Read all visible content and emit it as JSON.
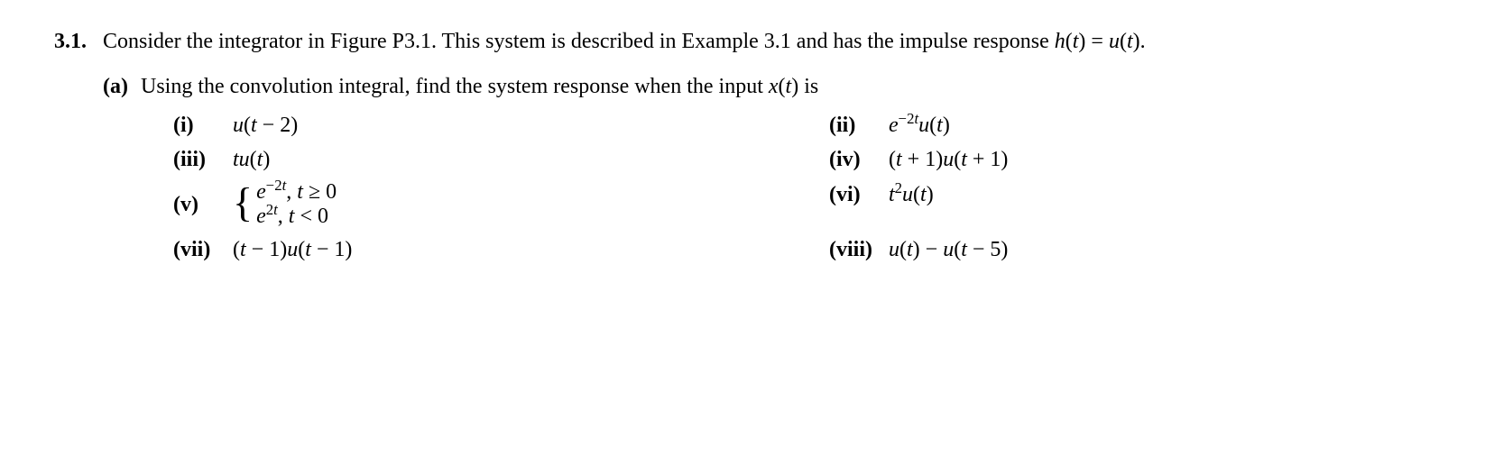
{
  "problem": {
    "number": "3.1.",
    "stem_a": "Consider the integrator in Figure P3.1. This system is described in Example 3.1 and has the impulse response ",
    "stem_math": "h(t) = u(t)",
    "stem_dot": ".",
    "part_a": {
      "label": "(a)",
      "text_a": "Using the convolution integral, find the system response when the input ",
      "text_math": "x(t)",
      "text_b": " is"
    },
    "items": {
      "i": {
        "label": "(i)",
        "expr_html": "u<span class='up'>(</span>t <span class='up'>−</span> <span class='up'>2)</span>"
      },
      "ii": {
        "label": "(ii)",
        "expr_html": "e<sup><span class='up'>−2</span>t</sup>u<span class='up'>(</span>t<span class='up'>)</span>"
      },
      "iii": {
        "label": "(iii)",
        "expr_html": "tu<span class='up'>(</span>t<span class='up'>)</span>"
      },
      "iv": {
        "label": "(iv)",
        "expr_html": "<span class='up'>(</span>t <span class='up'>+ 1)</span>u<span class='up'>(</span>t <span class='up'>+ 1)</span>"
      },
      "v": {
        "label": "(v)",
        "case1_html": "e<sup><span class='up'>−2</span>t</sup><span class='up'>,</span> t <span class='up'>≥ 0</span>",
        "case2_html": "e<sup><span class='up'>2</span>t</sup><span class='up'>,</span> t <span class='up'>&lt; 0</span>"
      },
      "vi": {
        "label": "(vi)",
        "expr_html": "t<sup><span class='up'>2</span></sup>u<span class='up'>(</span>t<span class='up'>)</span>"
      },
      "vii": {
        "label": "(vii)",
        "expr_html": "<span class='up'>(</span>t <span class='up'>− 1)</span>u<span class='up'>(</span>t <span class='up'>− 1)</span>"
      },
      "viii": {
        "label": "(viii)",
        "expr_html": "u<span class='up'>(</span>t<span class='up'>)</span> <span class='up'>−</span> u<span class='up'>(</span>t <span class='up'>− 5)</span>"
      }
    }
  },
  "style": {
    "font_family": "Times New Roman",
    "font_size_pt": 18,
    "text_color": "#000000",
    "background_color": "#ffffff"
  }
}
